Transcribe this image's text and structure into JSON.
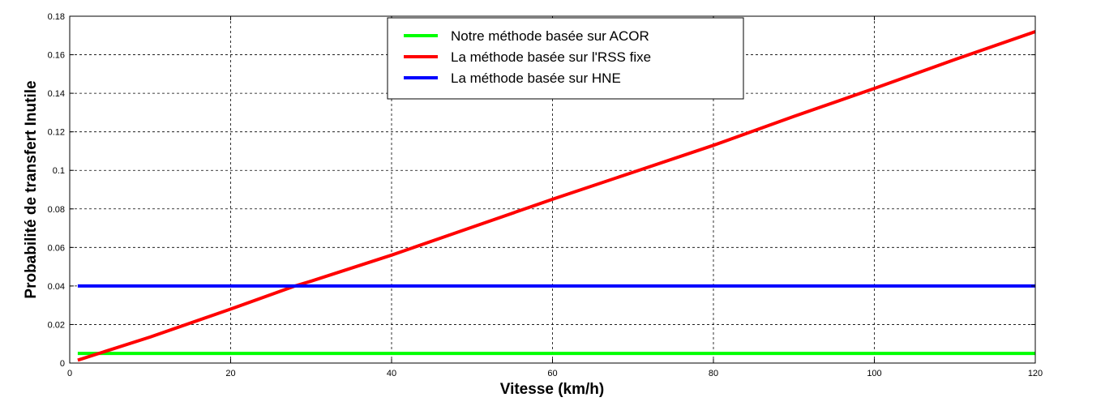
{
  "chart_data": {
    "type": "line",
    "title": "",
    "xlabel": "Vitesse (km/h)",
    "ylabel": "Probabilité de transfert Inutile",
    "xlim": [
      0,
      120
    ],
    "ylim": [
      0,
      0.18
    ],
    "xticks": [
      0,
      20,
      40,
      60,
      80,
      100,
      120
    ],
    "xtick_labels": [
      "0",
      "20",
      "40",
      "60",
      "80",
      "100",
      "120"
    ],
    "yticks": [
      0,
      0.02,
      0.04,
      0.06,
      0.08,
      0.1,
      0.12,
      0.14,
      0.16,
      0.18
    ],
    "ytick_labels": [
      "0",
      "0.02",
      "0.04",
      "0.06",
      "0.08",
      "0.1",
      "0.12",
      "0.14",
      "0.16",
      "0.18"
    ],
    "grid": true,
    "legend_position": "top-center",
    "series": [
      {
        "name": "Notre méthode basée sur ACOR",
        "color": "#00ff00",
        "x": [
          1,
          120
        ],
        "y": [
          0.005,
          0.005
        ]
      },
      {
        "name": "La méthode basée sur l'RSS fixe",
        "color": "#ff0000",
        "x": [
          1,
          10,
          20,
          28,
          30,
          40,
          50,
          60,
          70,
          80,
          90,
          100,
          110,
          120
        ],
        "y": [
          0.0015,
          0.0135,
          0.028,
          0.04,
          0.0425,
          0.056,
          0.0705,
          0.085,
          0.099,
          0.113,
          0.128,
          0.1425,
          0.1575,
          0.172
        ]
      },
      {
        "name": "La méthode basée sur HNE",
        "color": "#0000ff",
        "x": [
          1,
          120
        ],
        "y": [
          0.04,
          0.04
        ]
      }
    ]
  }
}
